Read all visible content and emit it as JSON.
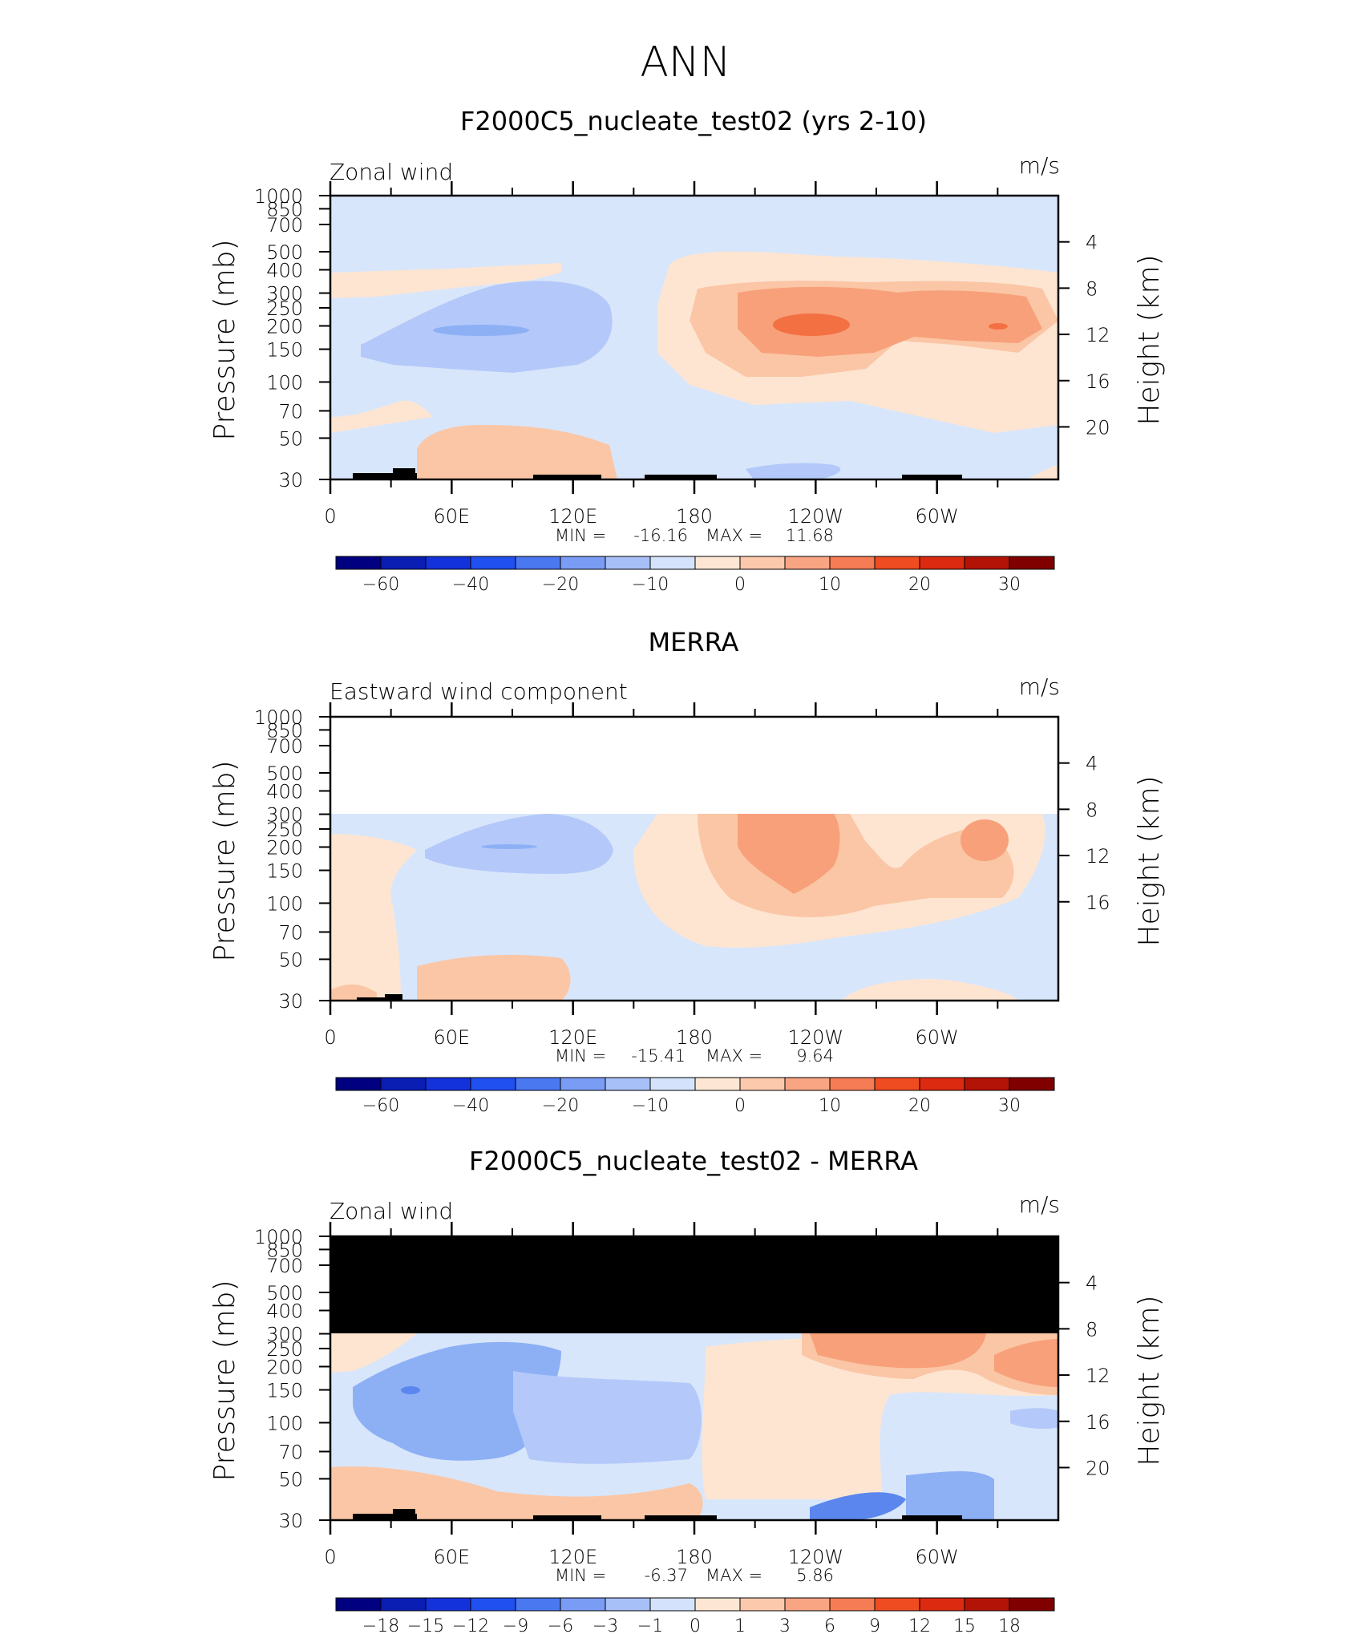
{
  "page": {
    "season": "ANN"
  },
  "chart_data": [
    {
      "type": "heatmap",
      "title": "F2000C5_nucleate_test02 (yrs 2-10)",
      "subtitle_left": "Zonal wind",
      "units": "m/s",
      "ylabel": "Pressure (mb)",
      "ylabel_right": "Height (km)",
      "x_ticks": [
        "0",
        "60E",
        "120E",
        "180",
        "120W",
        "60W"
      ],
      "y_ticks": [
        "30",
        "50",
        "70",
        "100",
        "150",
        "200",
        "250",
        "300",
        "400",
        "500",
        "700",
        "850",
        "1000"
      ],
      "y_ticks_right": [
        "20",
        "16",
        "12",
        "8",
        "4"
      ],
      "ylim": [
        1000,
        30
      ],
      "min_label": "MIN =",
      "min_value": "-16.16",
      "max_label": "MAX =",
      "max_value": "11.68",
      "colorbar_labels": [
        "-60",
        "-40",
        "-20",
        "-10",
        "0",
        "10",
        "20",
        "30"
      ],
      "masked_above_mb": null
    },
    {
      "type": "heatmap",
      "title": "MERRA",
      "subtitle_left": "Eastward wind component",
      "units": "m/s",
      "ylabel": "Pressure (mb)",
      "ylabel_right": "Height (km)",
      "x_ticks": [
        "0",
        "60E",
        "120E",
        "180",
        "120W",
        "60W"
      ],
      "y_ticks": [
        "30",
        "50",
        "70",
        "100",
        "150",
        "200",
        "250",
        "300",
        "400",
        "500",
        "700",
        "850",
        "1000"
      ],
      "y_ticks_right": [
        "16",
        "12",
        "8",
        "4"
      ],
      "ylim": [
        1000,
        30
      ],
      "min_label": "MIN =",
      "min_value": "-15.41",
      "max_label": "MAX =",
      "max_value": "9.64",
      "colorbar_labels": [
        "-60",
        "-40",
        "-20",
        "-10",
        "0",
        "10",
        "20",
        "30"
      ],
      "masked_above_mb": 100
    },
    {
      "type": "heatmap",
      "title": "F2000C5_nucleate_test02 - MERRA",
      "subtitle_left": "Zonal wind",
      "units": "m/s",
      "ylabel": "Pressure (mb)",
      "ylabel_right": "Height (km)",
      "x_ticks": [
        "0",
        "60E",
        "120E",
        "180",
        "120W",
        "60W"
      ],
      "y_ticks": [
        "30",
        "50",
        "70",
        "100",
        "150",
        "200",
        "250",
        "300",
        "400",
        "500",
        "700",
        "850",
        "1000"
      ],
      "y_ticks_right": [
        "20",
        "16",
        "12",
        "8",
        "4"
      ],
      "ylim": [
        1000,
        30
      ],
      "min_label": "MIN =",
      "min_value": "-6.37",
      "max_label": "MAX =",
      "max_value": "5.86",
      "colorbar_labels": [
        "-18",
        "-15",
        "-12",
        "-9",
        "-6",
        "-3",
        "-1",
        "0",
        "1",
        "3",
        "6",
        "9",
        "12",
        "15",
        "18"
      ],
      "masked_above_mb": 100
    }
  ],
  "colors": {
    "blue1": "#b4c9fa",
    "blue2": "#8db0f5",
    "blue3": "#5a86ee",
    "lightblue": "#d8e6fb",
    "peach1": "#fde5d2",
    "peach2": "#fbc6a5",
    "peach3": "#f7a07a",
    "orange": "#f37043",
    "terrain": "#000000",
    "colorbar_main": [
      "#000080",
      "#0a1eb4",
      "#1432dc",
      "#2050ef",
      "#4a78f0",
      "#7a9cf4",
      "#a8c0f8",
      "#d4e3fb",
      "#fde7d4",
      "#fcc9ac",
      "#f9a583",
      "#f57c55",
      "#ef4c22",
      "#dc2a10",
      "#b31306",
      "#800000"
    ],
    "colorbar_diff": [
      "#000080",
      "#0a1eb4",
      "#1432dc",
      "#2050ef",
      "#4a78f0",
      "#7a9cf4",
      "#a8c0f8",
      "#d4e3fb",
      "#fde7d4",
      "#fcc9ac",
      "#f9a583",
      "#f57c55",
      "#ef4c22",
      "#dc2a10",
      "#b31306",
      "#800000"
    ]
  }
}
